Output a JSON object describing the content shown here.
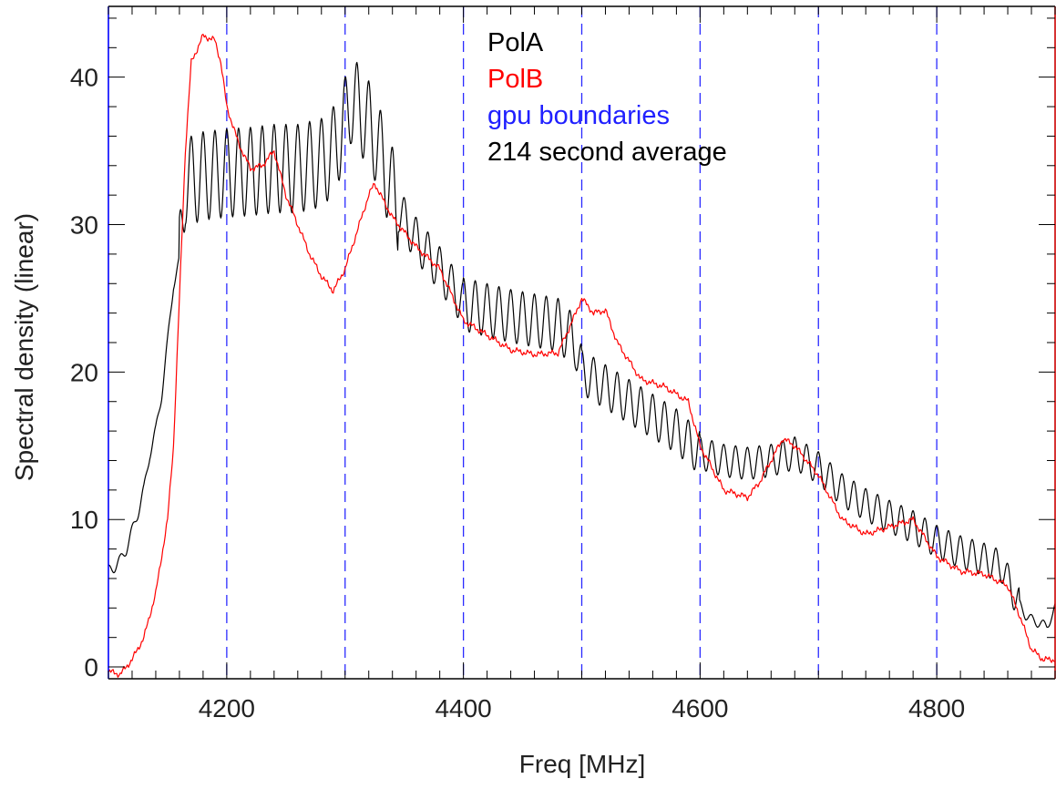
{
  "chart_data": {
    "type": "line",
    "title": "",
    "xlabel": "Freq [MHz]",
    "ylabel": "Spectral density (linear)",
    "xlim": [
      4100,
      4900
    ],
    "ylim": [
      -0.8,
      44.8
    ],
    "x_ticks": [
      4200,
      4400,
      4600,
      4800
    ],
    "x_tick_labels": [
      "4200",
      "4400",
      "4600",
      "4800"
    ],
    "y_ticks": [
      0,
      10,
      20,
      30,
      40
    ],
    "y_tick_labels": [
      "0",
      "10",
      "20",
      "30",
      "40"
    ],
    "grid": false,
    "legend": {
      "placement": "top-center",
      "entries": [
        {
          "label": "PolA",
          "color": "#000000"
        },
        {
          "label": "PolB",
          "color": "#ff0000"
        },
        {
          "label": "gpu boundaries",
          "color": "#2020ff"
        },
        {
          "label": "214 second average",
          "color": "#000000"
        }
      ]
    },
    "gpu_boundaries": [
      4200,
      4300,
      4400,
      4500,
      4600,
      4700,
      4800
    ],
    "series": [
      {
        "name": "PolA",
        "color": "#000000",
        "ripple_period": 10,
        "points": [
          [
            4100,
            6.5
          ],
          [
            4105,
            6.8
          ],
          [
            4110,
            7.2
          ],
          [
            4115,
            8.0
          ],
          [
            4120,
            9.2
          ],
          [
            4125,
            10.5
          ],
          [
            4130,
            12.0
          ],
          [
            4135,
            14.5
          ],
          [
            4140,
            16.0
          ],
          [
            4145,
            18.5
          ],
          [
            4150,
            22.0
          ],
          [
            4155,
            26.0
          ],
          [
            4160,
            27.5
          ],
          [
            4165,
            33.0
          ],
          [
            4170,
            33.0
          ],
          [
            4180,
            33.3
          ],
          [
            4200,
            33.5
          ],
          [
            4220,
            33.6
          ],
          [
            4240,
            33.8
          ],
          [
            4260,
            33.8
          ],
          [
            4280,
            34.2
          ],
          [
            4290,
            35.0
          ],
          [
            4300,
            37.0
          ],
          [
            4305,
            38.5
          ],
          [
            4315,
            37.5
          ],
          [
            4325,
            36.0
          ],
          [
            4335,
            33.5
          ],
          [
            4345,
            31.0
          ],
          [
            4360,
            29.0
          ],
          [
            4380,
            27.0
          ],
          [
            4400,
            24.6
          ],
          [
            4420,
            24.2
          ],
          [
            4440,
            23.8
          ],
          [
            4460,
            23.5
          ],
          [
            4480,
            23.2
          ],
          [
            4495,
            22.0
          ],
          [
            4500,
            20.0
          ],
          [
            4510,
            19.5
          ],
          [
            4520,
            19.0
          ],
          [
            4540,
            18.0
          ],
          [
            4560,
            17.0
          ],
          [
            4580,
            16.0
          ],
          [
            4600,
            14.5
          ],
          [
            4620,
            14.0
          ],
          [
            4640,
            13.8
          ],
          [
            4660,
            14.0
          ],
          [
            4680,
            14.5
          ],
          [
            4700,
            13.5
          ],
          [
            4720,
            12.0
          ],
          [
            4740,
            11.0
          ],
          [
            4760,
            10.2
          ],
          [
            4780,
            9.5
          ],
          [
            4800,
            8.5
          ],
          [
            4820,
            7.8
          ],
          [
            4840,
            7.3
          ],
          [
            4855,
            6.8
          ],
          [
            4865,
            5.0
          ],
          [
            4875,
            3.5
          ],
          [
            4885,
            3.0
          ],
          [
            4893,
            2.8
          ],
          [
            4898,
            3.5
          ],
          [
            4900,
            4.0
          ]
        ]
      },
      {
        "name": "PolB",
        "color": "#ff0000",
        "points": [
          [
            4100,
            -0.3
          ],
          [
            4110,
            -0.5
          ],
          [
            4120,
            0.5
          ],
          [
            4130,
            2.0
          ],
          [
            4140,
            5.0
          ],
          [
            4150,
            10.0
          ],
          [
            4155,
            15.0
          ],
          [
            4160,
            25.0
          ],
          [
            4165,
            35.0
          ],
          [
            4170,
            41.0
          ],
          [
            4180,
            42.8
          ],
          [
            4190,
            42.5
          ],
          [
            4195,
            41.0
          ],
          [
            4200,
            38.0
          ],
          [
            4210,
            35.5
          ],
          [
            4220,
            33.8
          ],
          [
            4230,
            34.0
          ],
          [
            4240,
            35.0
          ],
          [
            4250,
            32.0
          ],
          [
            4260,
            30.0
          ],
          [
            4270,
            28.0
          ],
          [
            4280,
            26.5
          ],
          [
            4290,
            25.5
          ],
          [
            4300,
            27.0
          ],
          [
            4310,
            29.5
          ],
          [
            4320,
            32.0
          ],
          [
            4325,
            32.8
          ],
          [
            4330,
            32.0
          ],
          [
            4340,
            30.5
          ],
          [
            4360,
            28.5
          ],
          [
            4380,
            27.0
          ],
          [
            4400,
            23.5
          ],
          [
            4420,
            22.5
          ],
          [
            4440,
            21.5
          ],
          [
            4460,
            21.2
          ],
          [
            4480,
            21.3
          ],
          [
            4495,
            24.0
          ],
          [
            4500,
            25.0
          ],
          [
            4510,
            24.0
          ],
          [
            4520,
            24.2
          ],
          [
            4530,
            22.0
          ],
          [
            4550,
            19.5
          ],
          [
            4570,
            19.0
          ],
          [
            4590,
            18.0
          ],
          [
            4600,
            15.0
          ],
          [
            4620,
            12.0
          ],
          [
            4640,
            11.5
          ],
          [
            4650,
            12.5
          ],
          [
            4670,
            15.5
          ],
          [
            4680,
            15.0
          ],
          [
            4700,
            13.0
          ],
          [
            4720,
            10.0
          ],
          [
            4740,
            9.0
          ],
          [
            4760,
            9.5
          ],
          [
            4780,
            10.0
          ],
          [
            4800,
            7.5
          ],
          [
            4820,
            6.5
          ],
          [
            4840,
            6.3
          ],
          [
            4860,
            5.5
          ],
          [
            4870,
            3.5
          ],
          [
            4880,
            1.2
          ],
          [
            4890,
            0.5
          ],
          [
            4900,
            0.5
          ]
        ]
      }
    ]
  }
}
